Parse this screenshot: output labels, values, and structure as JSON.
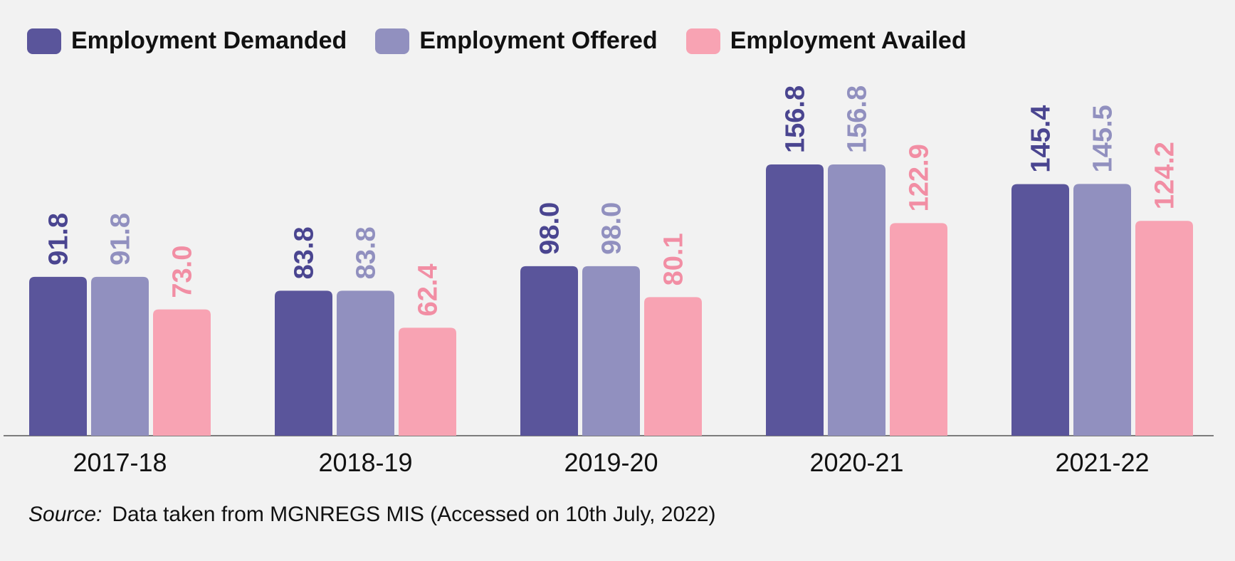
{
  "legend": [
    {
      "label": "Employment Demanded",
      "color": "#5a559b"
    },
    {
      "label": "Employment Offered",
      "color": "#9190bf"
    },
    {
      "label": "Employment Availed",
      "color": "#f8a3b3"
    }
  ],
  "chart_data": {
    "type": "bar",
    "categories": [
      "2017-18",
      "2018-19",
      "2019-20",
      "2020-21",
      "2021-22"
    ],
    "series": [
      {
        "name": "Employment Demanded",
        "color": "#5a559b",
        "label_color": "#4a4590",
        "values": [
          91.8,
          83.8,
          98.0,
          156.8,
          145.4
        ],
        "labels": [
          "91.8",
          "83.8",
          "98.0",
          "156.8",
          "145.4"
        ]
      },
      {
        "name": "Employment Offered",
        "color": "#9190bf",
        "label_color": "#9190bf",
        "values": [
          91.8,
          83.8,
          98.0,
          156.8,
          145.5
        ],
        "labels": [
          "91.8",
          "83.8",
          "98.0",
          "156.8",
          "145.5"
        ]
      },
      {
        "name": "Employment Availed",
        "color": "#f8a3b3",
        "label_color": "#f28ea4",
        "values": [
          73.0,
          62.4,
          80.1,
          122.9,
          124.2
        ],
        "labels": [
          "73.0",
          "62.4",
          "80.1",
          "122.9",
          "124.2"
        ]
      }
    ],
    "title": "",
    "xlabel": "",
    "ylabel": "",
    "ylim": [
      0,
      170
    ],
    "grid": false,
    "legend_position": "top-left",
    "data_labels": "rotated-vertical"
  },
  "source": {
    "prefix": "Source:",
    "text": "Data taken from MGNREGS MIS (Accessed on 10th July, 2022)"
  }
}
